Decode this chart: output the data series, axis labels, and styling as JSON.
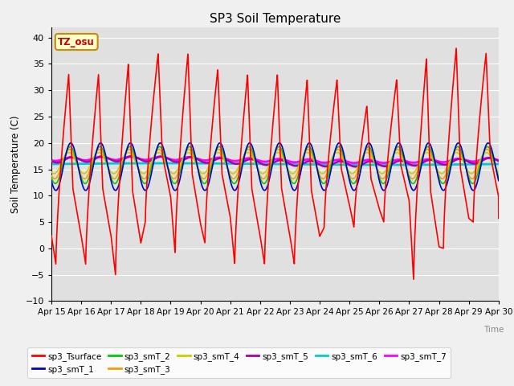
{
  "title": "SP3 Soil Temperature",
  "ylabel": "Soil Temperature (C)",
  "xlabel": "Time",
  "timezone_label": "TZ_osu",
  "ylim": [
    -10,
    42
  ],
  "yticks": [
    -10,
    -5,
    0,
    5,
    10,
    15,
    20,
    25,
    30,
    35,
    40
  ],
  "date_labels": [
    "Apr 15",
    "Apr 16",
    "Apr 17",
    "Apr 18",
    "Apr 19",
    "Apr 20",
    "Apr 21",
    "Apr 22",
    "Apr 23",
    "Apr 24",
    "Apr 25",
    "Apr 26",
    "Apr 27",
    "Apr 28",
    "Apr 29",
    "Apr 30"
  ],
  "series_colors": {
    "sp3_Tsurface": "#ff0000",
    "sp3_smT_1": "#0000cc",
    "sp3_smT_2": "#00cc00",
    "sp3_smT_3": "#ff9900",
    "sp3_smT_4": "#cccc00",
    "sp3_smT_5": "#aa00aa",
    "sp3_smT_6": "#00cccc",
    "sp3_smT_7": "#ff00ff"
  },
  "series_linewidths": {
    "sp3_Tsurface": 1.2,
    "sp3_smT_1": 1.2,
    "sp3_smT_2": 1.2,
    "sp3_smT_3": 1.2,
    "sp3_smT_4": 1.2,
    "sp3_smT_5": 1.8,
    "sp3_smT_6": 2.0,
    "sp3_smT_7": 2.0
  },
  "bg_color": "#e0e0e0",
  "grid_color": "#ffffff",
  "fig_bg": "#f0f0f0",
  "tz_box_bg": "#ffffcc",
  "tz_box_border": "#cc8800",
  "day_peaks": [
    33,
    33,
    35,
    37,
    37,
    34,
    33,
    33,
    32,
    32,
    27,
    32,
    36,
    38,
    37
  ],
  "day_mins": [
    -3,
    -3,
    -5,
    5,
    -1,
    1,
    -3,
    -3,
    -3,
    4,
    4,
    5,
    -6,
    0,
    5
  ],
  "soil_base": 16.0,
  "legend_ncol_row1": 6
}
